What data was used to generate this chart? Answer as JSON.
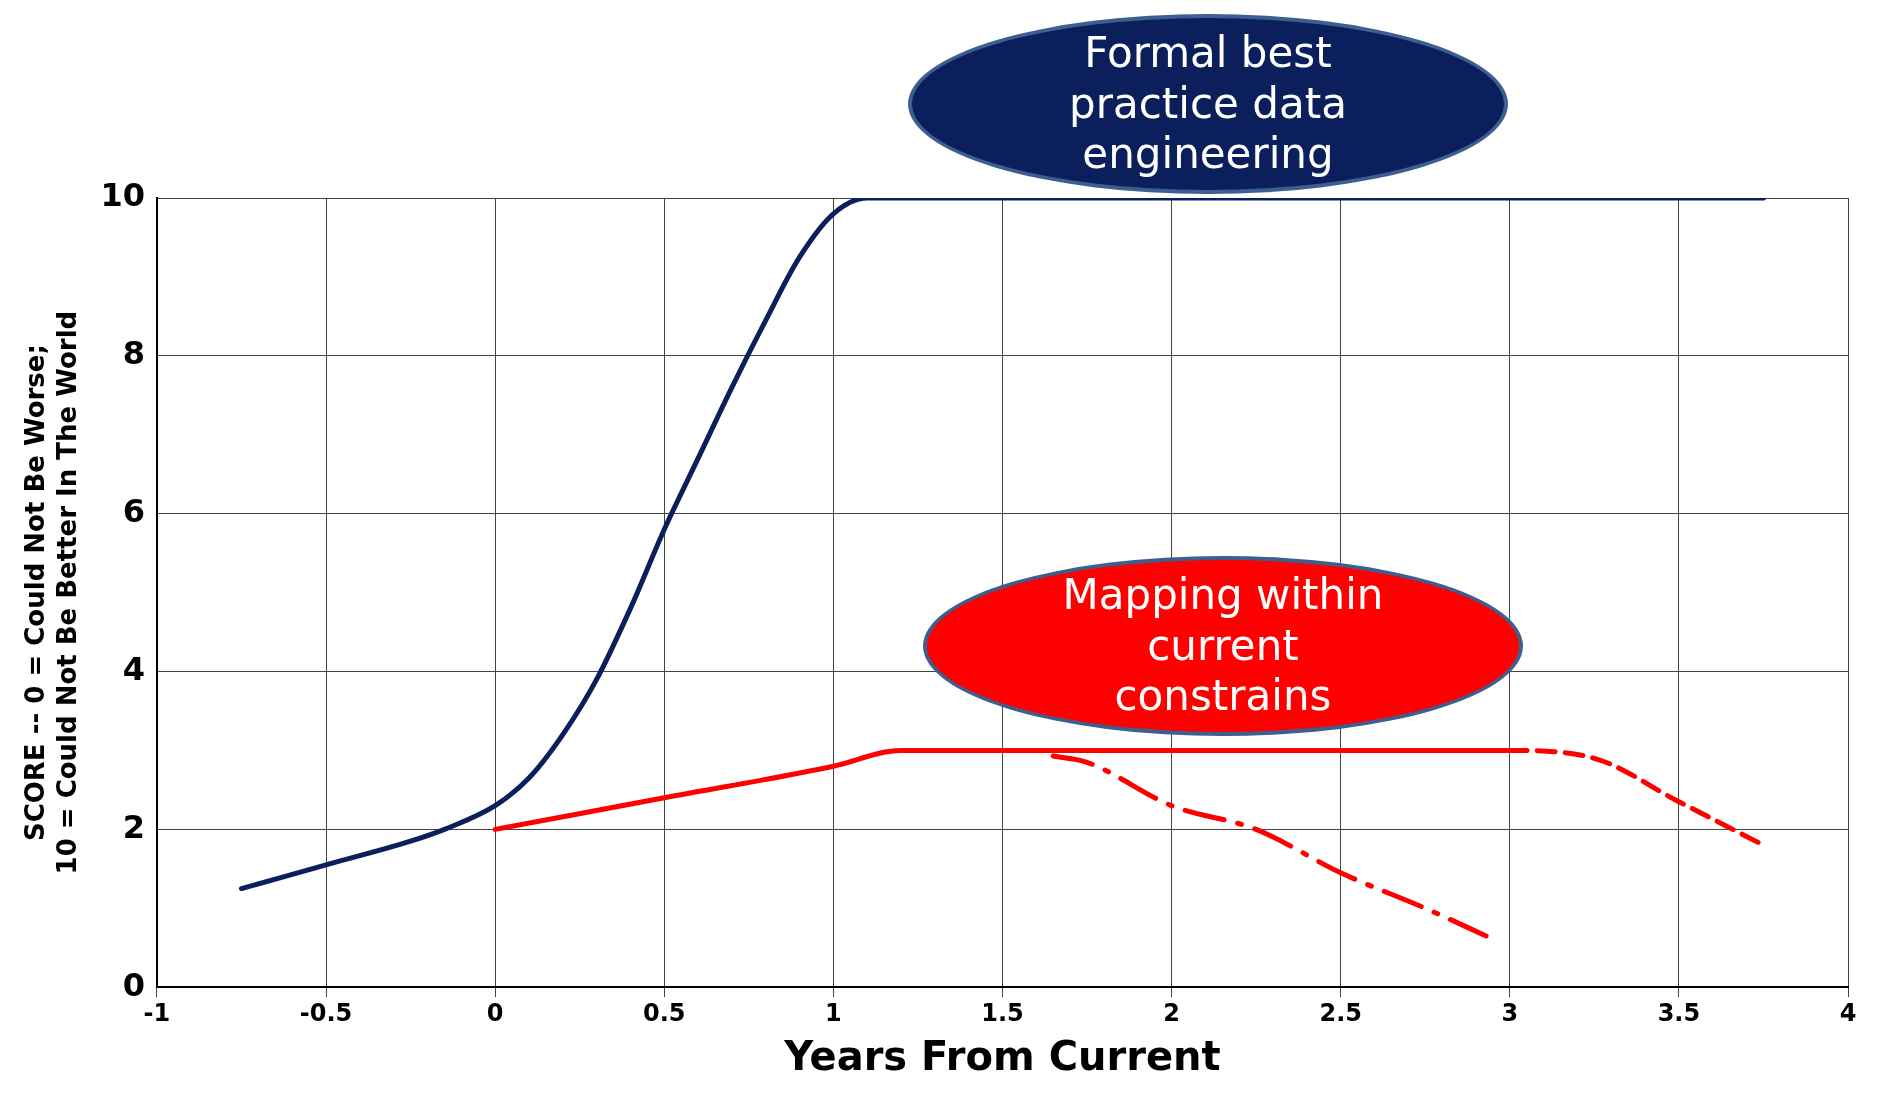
{
  "chart_data": {
    "type": "line",
    "xlabel": "Years From Current",
    "ylabel": "SCORE -- 0 = Could Not Be Worse;\n10 = Could Not Be Better In The World",
    "xlim": [
      -1,
      4
    ],
    "xticks": [
      -1,
      -0.5,
      0,
      0.5,
      1,
      1.5,
      2,
      2.5,
      3,
      3.5,
      4
    ],
    "ylim": [
      0,
      10
    ],
    "yticks": [
      0,
      2,
      4,
      6,
      8,
      10
    ],
    "grid": true,
    "legend": false,
    "marker": "none",
    "annotations": [
      "Formal best practice data engineering",
      "Mapping within current constrains"
    ],
    "series": [
      {
        "color": "#0a1f5c",
        "line_style": "solid",
        "x": [
          -0.75,
          -0.5,
          -0.25,
          -0.15,
          0,
          0.1,
          0.2,
          0.3,
          0.4,
          0.5,
          0.6,
          0.7,
          0.8,
          0.9,
          1.0,
          1.1,
          1.2,
          1.3,
          1.5,
          3.75
        ],
        "values": [
          1.25,
          1.55,
          1.85,
          2.0,
          2.3,
          2.65,
          3.2,
          3.9,
          4.8,
          5.8,
          6.7,
          7.6,
          8.45,
          9.25,
          9.8,
          10.0,
          10.0,
          10.0,
          10.0,
          10.0
        ]
      },
      {
        "color": "#ff0000",
        "line_style": "solid",
        "x": [
          0,
          0.5,
          1,
          1.2,
          1.3,
          3
        ],
        "values": [
          2,
          2.4,
          2.8,
          3.0,
          3.0,
          3.0
        ]
      },
      {
        "color": "#ff0000",
        "line_style": "dashdot",
        "x": [
          1.65,
          1.75,
          2,
          2.25,
          2.5,
          2.75,
          2.93
        ],
        "values": [
          2.93,
          2.85,
          2.3,
          2.0,
          1.45,
          1.0,
          0.65
        ]
      },
      {
        "color": "#ff0000",
        "line_style": "dashed",
        "x": [
          2.75,
          3,
          3.25,
          3.5,
          3.75
        ],
        "values": [
          3.0,
          3.0,
          2.9,
          2.35,
          1.8
        ]
      }
    ]
  }
}
